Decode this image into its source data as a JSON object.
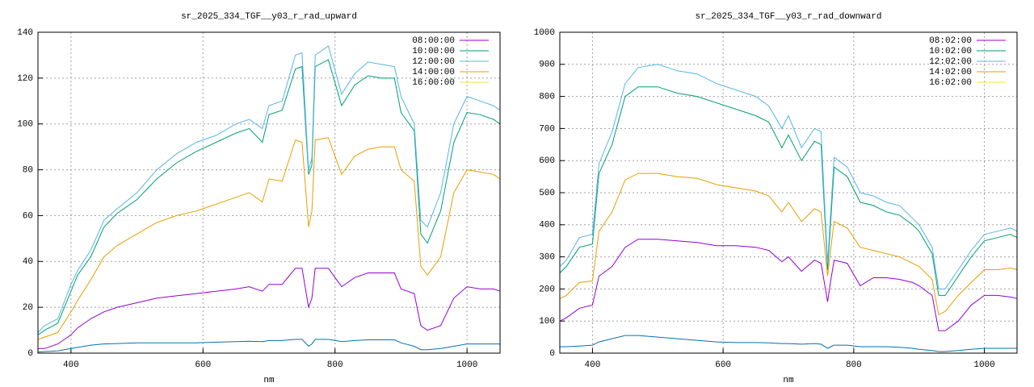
{
  "chart_data": [
    {
      "type": "line",
      "title": "sr_2025_334_TGF__y03_r_rad_upward",
      "xlabel": "nm",
      "xlim": [
        350,
        1050
      ],
      "xticks": [
        400,
        600,
        800,
        1000
      ],
      "ylim": [
        0,
        140
      ],
      "yticks": [
        0,
        20,
        40,
        60,
        80,
        100,
        120,
        140
      ],
      "grid": true,
      "legend": "top-right",
      "x": [
        350,
        360,
        380,
        400,
        410,
        430,
        450,
        470,
        500,
        530,
        560,
        590,
        620,
        650,
        670,
        690,
        700,
        720,
        740,
        750,
        760,
        765,
        770,
        790,
        810,
        830,
        850,
        870,
        890,
        900,
        920,
        930,
        940,
        960,
        980,
        1000,
        1020,
        1040,
        1050
      ],
      "series": [
        {
          "name": "08:00:00",
          "color": "#9400d3",
          "values": [
            2,
            2,
            4,
            8,
            11,
            15,
            18,
            20,
            22,
            24,
            25,
            26,
            27,
            28,
            29,
            27,
            30,
            30,
            37,
            37,
            20,
            24,
            37,
            37,
            29,
            33,
            35,
            35,
            35,
            28,
            26,
            12,
            10,
            12,
            24,
            29,
            28,
            28,
            27
          ]
        },
        {
          "name": "10:00:00",
          "color": "#009e73",
          "values": [
            8,
            10,
            13,
            27,
            34,
            42,
            55,
            61,
            67,
            76,
            83,
            88,
            92,
            96,
            98,
            92,
            104,
            106,
            124,
            125,
            78,
            82,
            125,
            128,
            108,
            117,
            121,
            120,
            120,
            105,
            97,
            52,
            48,
            62,
            92,
            105,
            104,
            102,
            100
          ]
        },
        {
          "name": "12:00:00",
          "color": "#56b4e9",
          "values": [
            9,
            12,
            15,
            30,
            36,
            45,
            58,
            63,
            70,
            80,
            87,
            92,
            95,
            100,
            102,
            98,
            108,
            110,
            130,
            131,
            80,
            85,
            130,
            134,
            113,
            122,
            127,
            126,
            125,
            112,
            100,
            58,
            55,
            70,
            100,
            112,
            110,
            108,
            106
          ]
        },
        {
          "name": "14:00:00",
          "color": "#e69f00",
          "values": [
            6,
            7,
            9,
            18,
            23,
            32,
            42,
            47,
            52,
            57,
            60,
            62,
            65,
            68,
            70,
            66,
            76,
            75,
            93,
            92,
            55,
            62,
            93,
            94,
            78,
            86,
            89,
            90,
            90,
            80,
            75,
            38,
            34,
            42,
            70,
            80,
            79,
            78,
            76
          ]
        },
        {
          "name": "16:00:00",
          "color": "#f0e442",
          "values": [
            null,
            null,
            null,
            null,
            null,
            null,
            null,
            null,
            null,
            null,
            null,
            null,
            null,
            null,
            null,
            null,
            null,
            null,
            null,
            null,
            null,
            null,
            null,
            null,
            null,
            null,
            null,
            null,
            null,
            null,
            null,
            null,
            null,
            null,
            null,
            null,
            null,
            null,
            null
          ]
        },
        {
          "color": "#0072b2",
          "values": [
            0.5,
            0.7,
            1,
            2,
            2.5,
            3.5,
            4,
            4.2,
            4.5,
            4.5,
            4.5,
            4.5,
            4.8,
            5,
            5.2,
            5,
            5.5,
            5.5,
            6,
            6,
            3,
            4,
            6,
            6,
            5,
            5.5,
            5.8,
            5.8,
            5.8,
            4.5,
            3,
            1.5,
            1.5,
            2,
            3,
            4,
            4,
            4,
            4
          ]
        }
      ]
    },
    {
      "type": "line",
      "title": "sr_2025_334_TGF__y03_r_rad_downward",
      "xlabel": "nm",
      "xlim": [
        350,
        1050
      ],
      "xticks": [
        400,
        600,
        800,
        1000
      ],
      "ylim": [
        0,
        1000
      ],
      "yticks": [
        0,
        100,
        200,
        300,
        400,
        500,
        600,
        700,
        800,
        900,
        1000
      ],
      "grid": true,
      "legend": "top-right",
      "x": [
        350,
        360,
        380,
        400,
        410,
        430,
        450,
        470,
        500,
        530,
        560,
        590,
        620,
        650,
        670,
        690,
        700,
        720,
        740,
        750,
        760,
        765,
        770,
        790,
        810,
        830,
        850,
        870,
        890,
        900,
        920,
        930,
        940,
        960,
        980,
        1000,
        1020,
        1040,
        1050
      ],
      "series": [
        {
          "name": "08:02:00",
          "color": "#9400d3",
          "values": [
            100,
            110,
            140,
            150,
            240,
            270,
            330,
            355,
            355,
            350,
            345,
            335,
            335,
            330,
            320,
            285,
            300,
            255,
            290,
            280,
            160,
            230,
            290,
            280,
            210,
            235,
            235,
            230,
            220,
            210,
            180,
            70,
            70,
            100,
            150,
            180,
            180,
            175,
            170
          ]
        },
        {
          "name": "10:02:00",
          "color": "#009e73",
          "values": [
            250,
            270,
            330,
            340,
            560,
            650,
            800,
            830,
            830,
            810,
            800,
            780,
            760,
            740,
            720,
            640,
            680,
            600,
            660,
            650,
            260,
            420,
            580,
            550,
            470,
            460,
            440,
            430,
            400,
            380,
            310,
            180,
            180,
            240,
            300,
            350,
            360,
            370,
            360
          ]
        },
        {
          "name": "12:02:00",
          "color": "#56b4e9",
          "values": [
            270,
            290,
            360,
            370,
            590,
            690,
            840,
            890,
            900,
            880,
            870,
            840,
            820,
            800,
            770,
            700,
            740,
            640,
            700,
            690,
            280,
            450,
            610,
            580,
            500,
            490,
            470,
            460,
            420,
            400,
            330,
            200,
            200,
            260,
            320,
            370,
            380,
            390,
            380
          ]
        },
        {
          "name": "14:02:00",
          "color": "#e69f00",
          "values": [
            170,
            180,
            220,
            225,
            380,
            440,
            540,
            560,
            560,
            550,
            545,
            525,
            515,
            505,
            490,
            440,
            470,
            410,
            450,
            440,
            240,
            330,
            410,
            390,
            330,
            320,
            310,
            300,
            280,
            270,
            230,
            120,
            130,
            180,
            220,
            260,
            260,
            265,
            260
          ]
        },
        {
          "name": "16:02:00",
          "color": "#f0e442",
          "values": [
            null,
            null,
            null,
            null,
            null,
            null,
            null,
            null,
            null,
            null,
            null,
            null,
            null,
            null,
            null,
            null,
            null,
            null,
            null,
            null,
            null,
            null,
            null,
            null,
            null,
            null,
            null,
            null,
            null,
            null,
            null,
            null,
            null,
            null,
            null,
            null,
            null,
            null,
            null
          ]
        },
        {
          "color": "#0072b2",
          "values": [
            20,
            20,
            22,
            25,
            35,
            45,
            55,
            55,
            50,
            45,
            40,
            35,
            33,
            33,
            32,
            30,
            30,
            28,
            30,
            28,
            15,
            20,
            25,
            25,
            20,
            20,
            20,
            18,
            15,
            12,
            8,
            5,
            5,
            8,
            12,
            15,
            15,
            15,
            15
          ]
        }
      ]
    }
  ]
}
